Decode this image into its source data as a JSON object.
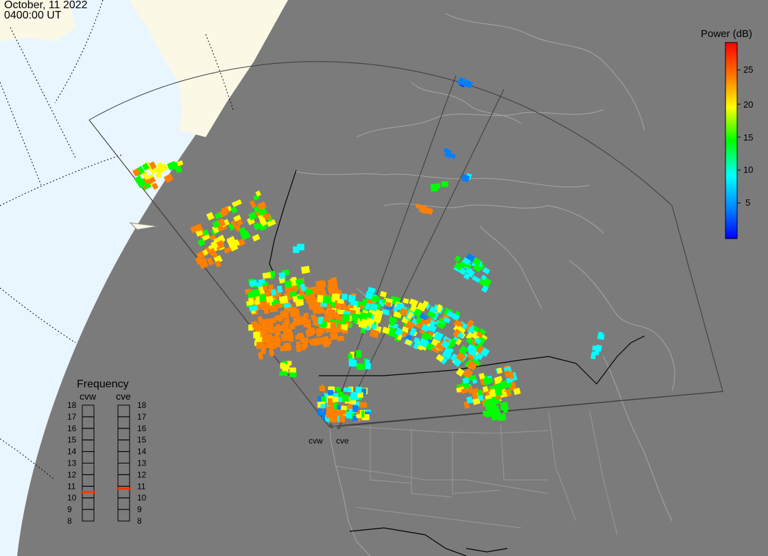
{
  "header": {
    "date": "October, 11 2022",
    "time": "0400:00 UT"
  },
  "colorbar": {
    "title": "Power (dB)",
    "ticks": [
      "25",
      "20",
      "15",
      "10",
      "5"
    ],
    "colors": [
      "#ff0000",
      "#ff8000",
      "#ffff00",
      "#00ff00",
      "#00ffff",
      "#0040ff",
      "#0000ff"
    ]
  },
  "frequency": {
    "title": "Frequency",
    "radars": [
      {
        "name": "cvw",
        "freq_mhz": 10.5
      },
      {
        "name": "cve",
        "freq_mhz": 10.8
      }
    ],
    "ticks": [
      "18",
      "17",
      "16",
      "15",
      "14",
      "13",
      "12",
      "11",
      "10",
      "9",
      "8"
    ]
  },
  "site_labels": [
    "cvw",
    "cve"
  ],
  "colors": {
    "night": "#7b7b7b",
    "day_ocean": "#eaf6ff",
    "day_land": "#fbf8e6",
    "borders": "#000000",
    "coastline": "#a0a0a0",
    "fov": "#3a3a3a",
    "freq_marker": "#ff3300"
  }
}
